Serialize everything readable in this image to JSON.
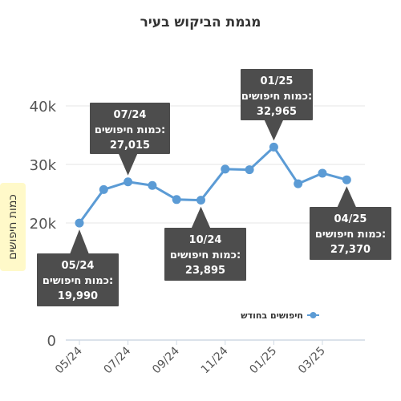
{
  "chart_data": {
    "type": "line",
    "title": "מגמת הביקוש בעיר",
    "xlabel": "",
    "ylabel": "כמות חיפושים",
    "ylim": [
      0,
      40000
    ],
    "y_ticks": [
      "0",
      "20k",
      "30k",
      "40k"
    ],
    "y_tick_values": [
      0,
      20000,
      30000,
      40000
    ],
    "x_tick_labels": [
      "05/24",
      "07/24",
      "09/24",
      "11/24",
      "01/25",
      "03/25"
    ],
    "grid": true,
    "legend_position": "right",
    "color": "#5b9bd5",
    "series": [
      {
        "name": "חיפושים בחודש",
        "x": [
          "05/24",
          "06/24",
          "07/24",
          "08/24",
          "09/24",
          "10/24",
          "11/24",
          "12/24",
          "01/25",
          "02/25",
          "03/25",
          "04/25"
        ],
        "values": [
          19990,
          25700,
          27015,
          26400,
          24000,
          23895,
          29200,
          29100,
          32965,
          26700,
          28500,
          27370
        ]
      }
    ],
    "annotations": [
      {
        "month": "05/24",
        "line2": "כמות חיפושים:",
        "value": "19,990"
      },
      {
        "month": "07/24",
        "line2": "כמות חיפושים:",
        "value": "27,015"
      },
      {
        "month": "10/24",
        "line2": "כמות חיפושים:",
        "value": "23,895"
      },
      {
        "month": "01/25",
        "line2": "כמות חיפושים:",
        "value": "32,965"
      },
      {
        "month": "04/25",
        "line2": "כמות חיפושים:",
        "value": "27,370"
      }
    ]
  }
}
